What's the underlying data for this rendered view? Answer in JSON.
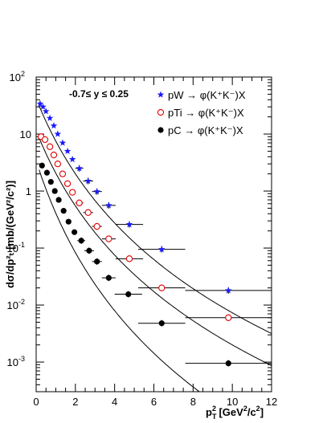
{
  "chart_data": {
    "type": "scatter",
    "xlabel_main": "p",
    "xlabel_sub": "T",
    "xlabel_sup": "2",
    "xlabel_unit": "[GeV",
    "xlabel_unit_sup": "2",
    "xlabel_unit_end": "/c",
    "xlabel_unit_end_sup": "2",
    "xlabel_close": "]",
    "ylabel": "dσ/dp²ₜ [mb/(GeV²/c²)]",
    "xlim": [
      0,
      12
    ],
    "ylim": [
      0.0003,
      100
    ],
    "yscale": "log",
    "x_ticks": [
      "0",
      "2",
      "4",
      "6",
      "8",
      "10",
      "12"
    ],
    "annotation": "-0.7≤ y ≤ 0.25",
    "legend_position": "top-right",
    "series": [
      {
        "name": "pW → φ(K⁺K⁻)X",
        "marker": "star",
        "color": "#1a1aff",
        "points": [
          {
            "x": 0.2,
            "y": 34,
            "xerr": 0.0
          },
          {
            "x": 0.35,
            "y": 30,
            "xerr": 0.0
          },
          {
            "x": 0.5,
            "y": 25,
            "xerr": 0.0
          },
          {
            "x": 0.7,
            "y": 19,
            "xerr": 0.0
          },
          {
            "x": 0.9,
            "y": 14,
            "xerr": 0.0
          },
          {
            "x": 1.1,
            "y": 10,
            "xerr": 0.0
          },
          {
            "x": 1.35,
            "y": 7.0,
            "xerr": 0.0
          },
          {
            "x": 1.6,
            "y": 5.0,
            "xerr": 0.0
          },
          {
            "x": 1.85,
            "y": 3.6,
            "xerr": 0.0
          },
          {
            "x": 2.2,
            "y": 2.5,
            "xerr": 0.2
          },
          {
            "x": 2.65,
            "y": 1.5,
            "xerr": 0.25
          },
          {
            "x": 3.1,
            "y": 0.98,
            "xerr": 0.25
          },
          {
            "x": 3.7,
            "y": 0.56,
            "xerr": 0.35
          },
          {
            "x": 4.75,
            "y": 0.26,
            "xerr": 0.7
          },
          {
            "x": 6.4,
            "y": 0.095,
            "xerr": 1.2
          },
          {
            "x": 9.8,
            "y": 0.018,
            "xerr": 2.2
          }
        ]
      },
      {
        "name": "pTi → φ(K⁺K⁻)X",
        "marker": "open-circle",
        "color": "#e00000",
        "points": [
          {
            "x": 0.25,
            "y": 9.0,
            "xerr": 0.0
          },
          {
            "x": 0.45,
            "y": 8.0,
            "xerr": 0.0
          },
          {
            "x": 0.7,
            "y": 6.0,
            "xerr": 0.0
          },
          {
            "x": 0.9,
            "y": 4.3,
            "xerr": 0.0
          },
          {
            "x": 1.1,
            "y": 3.0,
            "xerr": 0.0
          },
          {
            "x": 1.35,
            "y": 2.0,
            "xerr": 0.0
          },
          {
            "x": 1.6,
            "y": 1.35,
            "xerr": 0.0
          },
          {
            "x": 1.85,
            "y": 0.95,
            "xerr": 0.0
          },
          {
            "x": 2.2,
            "y": 0.62,
            "xerr": 0.2
          },
          {
            "x": 2.65,
            "y": 0.42,
            "xerr": 0.25
          },
          {
            "x": 3.1,
            "y": 0.24,
            "xerr": 0.25
          },
          {
            "x": 3.7,
            "y": 0.145,
            "xerr": 0.35
          },
          {
            "x": 4.75,
            "y": 0.065,
            "xerr": 0.7
          },
          {
            "x": 6.4,
            "y": 0.02,
            "xerr": 1.2
          },
          {
            "x": 9.8,
            "y": 0.006,
            "xerr": 2.2
          }
        ]
      },
      {
        "name": "pC → φ(K⁺K⁻)X",
        "marker": "filled-circle",
        "color": "#000000",
        "points": [
          {
            "x": 0.3,
            "y": 2.8,
            "xerr": 0.0
          },
          {
            "x": 0.55,
            "y": 2.1,
            "xerr": 0.0
          },
          {
            "x": 0.75,
            "y": 1.45,
            "xerr": 0.0
          },
          {
            "x": 0.95,
            "y": 1.0,
            "xerr": 0.0
          },
          {
            "x": 1.15,
            "y": 0.7,
            "xerr": 0.0
          },
          {
            "x": 1.4,
            "y": 0.45,
            "xerr": 0.0
          },
          {
            "x": 1.65,
            "y": 0.29,
            "xerr": 0.0
          },
          {
            "x": 1.95,
            "y": 0.19,
            "xerr": 0.0
          },
          {
            "x": 2.3,
            "y": 0.135,
            "xerr": 0.2
          },
          {
            "x": 2.7,
            "y": 0.09,
            "xerr": 0.25
          },
          {
            "x": 3.1,
            "y": 0.058,
            "xerr": 0.25
          },
          {
            "x": 3.7,
            "y": 0.03,
            "xerr": 0.35
          },
          {
            "x": 4.7,
            "y": 0.0155,
            "xerr": 0.7
          },
          {
            "x": 6.4,
            "y": 0.0048,
            "xerr": 1.2
          },
          {
            "x": 9.8,
            "y": 0.00095,
            "xerr": 2.2
          }
        ]
      }
    ],
    "fits": [
      {
        "A": 42,
        "B": 2.9,
        "n": 5.8
      },
      {
        "A": 11.5,
        "B": 2.9,
        "n": 5.8
      },
      {
        "A": 3.4,
        "B": 2.6,
        "n": 6.5
      }
    ]
  }
}
